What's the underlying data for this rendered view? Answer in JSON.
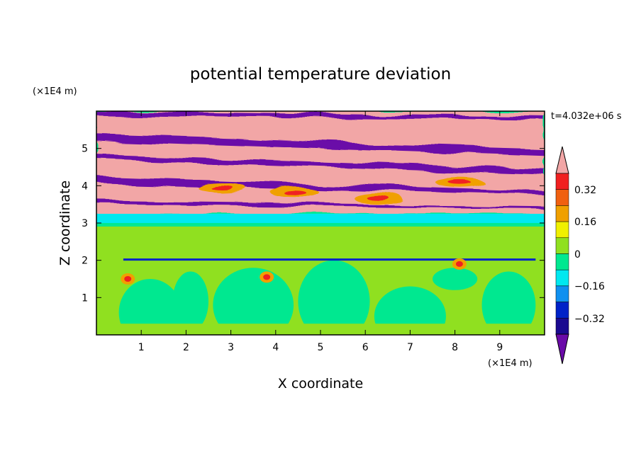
{
  "chart_data": {
    "type": "heatmap",
    "title": "potential temperature deviation",
    "time_label": "t=4.032e+06 s",
    "xlabel": "X coordinate",
    "ylabel": "Z coordinate",
    "x_unit": "(×1E4 m)",
    "y_unit": "(×1E4 m)",
    "xlim": [
      0,
      10
    ],
    "ylim": [
      0,
      6
    ],
    "x_ticks": [
      "1",
      "2",
      "3",
      "4",
      "5",
      "6",
      "7",
      "8",
      "9"
    ],
    "y_ticks": [
      "1",
      "2",
      "3",
      "4",
      "5"
    ],
    "colorbar": {
      "labels": [
        "0.32",
        "0.16",
        "0",
        "−0.16",
        "−0.32"
      ],
      "levels": [
        -0.4,
        -0.32,
        -0.24,
        -0.16,
        -0.08,
        0,
        0.08,
        0.16,
        0.24,
        0.32,
        0.4
      ],
      "colors": [
        "#6a0aa8",
        "#1a0a90",
        "#0022c8",
        "#1090f0",
        "#00e8f0",
        "#00e890",
        "#90e020",
        "#f0f000",
        "#f0a000",
        "#f06010",
        "#f02020",
        "#f2a6a6"
      ],
      "extend": "both"
    },
    "layers": [
      {
        "z_range": [
          0,
          2.0
        ],
        "value_range": [
          -0.05,
          0.05
        ],
        "note": "green / mint region"
      },
      {
        "z_range": [
          2.0,
          2.05
        ],
        "value_range": [
          -0.4,
          0.2
        ],
        "note": "thin dark band"
      },
      {
        "z_range": [
          2.05,
          3.0
        ],
        "value_range": [
          0,
          0.1
        ],
        "note": "green with warm patches"
      },
      {
        "z_range": [
          3.0,
          3.25
        ],
        "value_range": [
          -0.16,
          -0.08
        ],
        "note": "cyan band"
      },
      {
        "z_range": [
          3.25,
          6.0
        ],
        "value_range": [
          -0.4,
          0.4
        ],
        "note": "alternating purple / pink bands"
      }
    ],
    "grid": false,
    "legend": "right colorbar"
  }
}
